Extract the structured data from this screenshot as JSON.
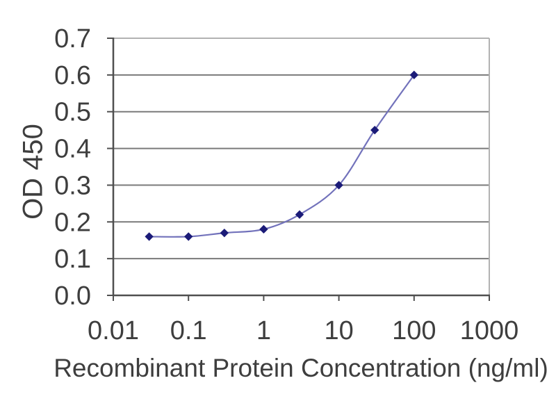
{
  "chart_data": {
    "type": "line",
    "title": "",
    "xlabel": "Recombinant Protein Concentration (ng/ml)",
    "ylabel": "OD 450",
    "x_scale": "log",
    "xlim": [
      0.01,
      1000
    ],
    "ylim": [
      0.0,
      0.7
    ],
    "x_tick_labels": [
      "0.01",
      "0.1",
      "1",
      "10",
      "100",
      "1000"
    ],
    "y_tick_labels": [
      "0.0",
      "0.1",
      "0.2",
      "0.3",
      "0.4",
      "0.5",
      "0.6",
      "0.7"
    ],
    "grid": "horizontal",
    "legend": "none",
    "marker": "diamond",
    "series": [
      {
        "x": [
          0.03,
          0.1,
          0.3,
          1,
          3,
          10,
          30,
          100
        ],
        "y": [
          0.16,
          0.16,
          0.17,
          0.18,
          0.22,
          0.3,
          0.45,
          0.6
        ]
      }
    ],
    "colors": {
      "marker": "#1b1b78",
      "line": "#7272bb",
      "gridline": "#7a7a7a",
      "axis": "#4f4f4f",
      "border": "#b2b2b2",
      "text": "#3e3e3e",
      "background": "#ffffff"
    }
  }
}
